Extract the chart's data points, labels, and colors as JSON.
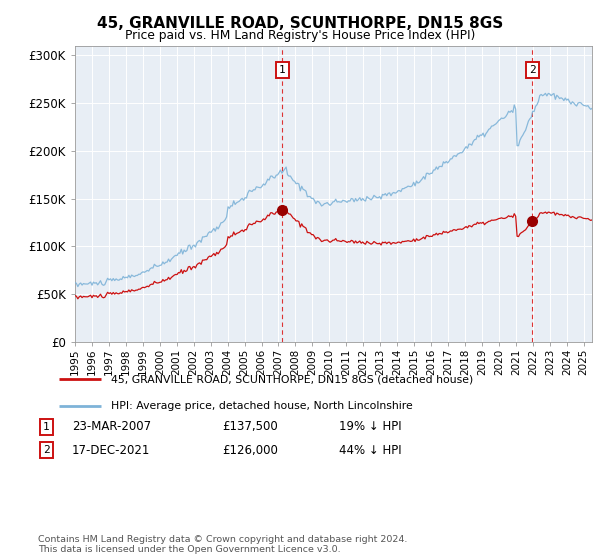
{
  "title": "45, GRANVILLE ROAD, SCUNTHORPE, DN15 8GS",
  "subtitle": "Price paid vs. HM Land Registry's House Price Index (HPI)",
  "bg_color": "#e8eef5",
  "hpi_color": "#7eb3d8",
  "price_color": "#cc1111",
  "ylim": [
    0,
    310000
  ],
  "yticks": [
    0,
    50000,
    100000,
    150000,
    200000,
    250000,
    300000
  ],
  "ytick_labels": [
    "£0",
    "£50K",
    "£100K",
    "£150K",
    "£200K",
    "£250K",
    "£300K"
  ],
  "xstart": 1995.0,
  "xend": 2025.5,
  "marker1_x": 2007.22,
  "marker1_price": 137500,
  "marker2_x": 2021.96,
  "marker2_price": 126000,
  "legend_line1": "45, GRANVILLE ROAD, SCUNTHORPE, DN15 8GS (detached house)",
  "legend_line2": "HPI: Average price, detached house, North Lincolnshire",
  "footnote": "Contains HM Land Registry data © Crown copyright and database right 2024.\nThis data is licensed under the Open Government Licence v3.0.",
  "xtick_years": [
    1995,
    1996,
    1997,
    1998,
    1999,
    2000,
    2001,
    2002,
    2003,
    2004,
    2005,
    2006,
    2007,
    2008,
    2009,
    2010,
    2011,
    2012,
    2013,
    2014,
    2015,
    2016,
    2017,
    2018,
    2019,
    2020,
    2021,
    2022,
    2023,
    2024,
    2025
  ]
}
